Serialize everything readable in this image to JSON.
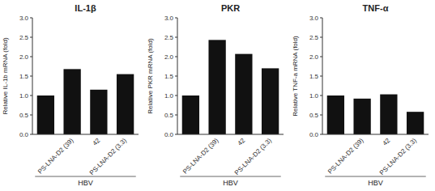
{
  "chart_data": [
    {
      "type": "bar",
      "title": "IL-1β",
      "ylabel": "Relative IL-1b mRNA (fold)",
      "categories": [
        null,
        "PS-LNA-D2 (39)",
        "42",
        "PS-LNA-D2 (3.3)"
      ],
      "values": [
        1.0,
        1.68,
        1.15,
        1.55
      ],
      "color": "#111111",
      "ylim": [
        0,
        3.0
      ],
      "yticks": [
        {
          "value": 0.0,
          "label": "0.0"
        },
        0.5,
        {
          "value": 1.0,
          "label": "1.0"
        },
        1.5,
        {
          "value": 2.0,
          "label": "2.0"
        },
        2.5,
        {
          "value": 3.0,
          "label": "3.0"
        }
      ],
      "annotations": [
        "HBV"
      ],
      "grid": false
    },
    {
      "type": "bar",
      "title": "PKR",
      "ylabel": "Relative PKR mRNA (fold)",
      "categories": [
        null,
        "PS-LNA-D2 (39)",
        "42",
        "PS-LNA-D2 (3.3)"
      ],
      "values": [
        1.0,
        2.43,
        2.07,
        1.7
      ],
      "color": "#111111",
      "ylim": [
        0,
        3.0
      ],
      "yticks": [
        {
          "value": 0.0,
          "label": "0.0"
        },
        0.5,
        {
          "value": 1.0,
          "label": "1.0"
        },
        1.5,
        {
          "value": 2.0,
          "label": "2.0"
        },
        2.5,
        {
          "value": 3.0,
          "label": "3.0"
        }
      ],
      "annotations": [
        "HBV"
      ],
      "grid": false
    },
    {
      "type": "bar",
      "title": "TNF-α",
      "ylabel": "Relative TNF-a mRNA (fold)",
      "categories": [
        null,
        "PS-LNA-D2 (39)",
        "42",
        "PS-LNA-D2 (3.3)"
      ],
      "values": [
        1.0,
        0.92,
        1.03,
        0.58
      ],
      "color": "#111111",
      "ylim": [
        0,
        3.0
      ],
      "yticks": [
        {
          "value": 0.0,
          "label": "0.0"
        },
        0.5,
        {
          "value": 1.0,
          "label": "1.0"
        },
        1.5,
        {
          "value": 2.0,
          "label": "2.0"
        },
        2.5,
        {
          "value": 3.0,
          "label": "3.0"
        }
      ],
      "annotations": [
        "HBV"
      ],
      "grid": false
    }
  ]
}
